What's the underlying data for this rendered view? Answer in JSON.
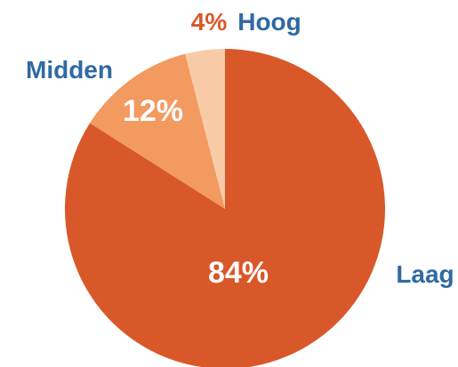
{
  "chart_data": {
    "type": "pie",
    "categories": [
      "Laag",
      "Midden",
      "Hoog"
    ],
    "values": [
      84,
      12,
      4
    ],
    "value_labels": [
      "84%",
      "12%",
      "4%"
    ],
    "colors": [
      "#d9582a",
      "#f29a60",
      "#f8cba6"
    ],
    "category_label_color": "#2f6aa3",
    "inner_label_color": "#ffffff",
    "outer_value_label_color": "#d9582a",
    "title": "",
    "start_angle_deg": 0,
    "direction": "clockwise"
  }
}
